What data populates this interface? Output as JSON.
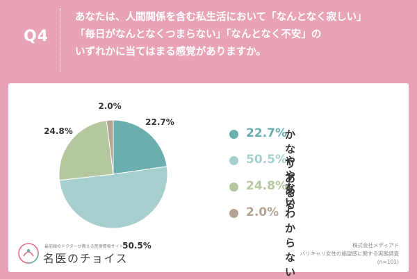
{
  "header": {
    "q_label": "Q4",
    "question_lines": [
      "あなたは、人間関係を含む私生活において「なんとなく寂しい」",
      "「毎日がなんとなくつまらない」「なんとなく不安」の",
      "いずれかに当てはまる感覚がありますか。"
    ]
  },
  "colors": {
    "background": "#e8a3b6",
    "card": "#ffffff",
    "slice_kanari": "#6aaeb0",
    "slice_yaya": "#a6cfce",
    "slice_nai": "#b5c79e",
    "slice_wakaranai": "#b3a392"
  },
  "chart_data": {
    "type": "pie",
    "slices": [
      {
        "label": "かなりある",
        "value": 22.7,
        "display": "22.7%",
        "color": "#6aaeb0"
      },
      {
        "label": "ややある",
        "value": 50.5,
        "display": "50.5%",
        "color": "#a6cfce"
      },
      {
        "label": "ない",
        "value": 24.8,
        "display": "24.8%",
        "color": "#b5c79e"
      },
      {
        "label": "わからない",
        "value": 2.0,
        "display": "2.0%",
        "color": "#b3a392"
      }
    ],
    "legend_placement": "right"
  },
  "logo": {
    "tagline": "最前線のドクターが教える医療情報サイト",
    "name": "名医のチョイス"
  },
  "source": {
    "company": "株式会社メディアド",
    "survey": "バリキャリ女性の絶望感に関する実態調査",
    "n": "(n=101)"
  }
}
